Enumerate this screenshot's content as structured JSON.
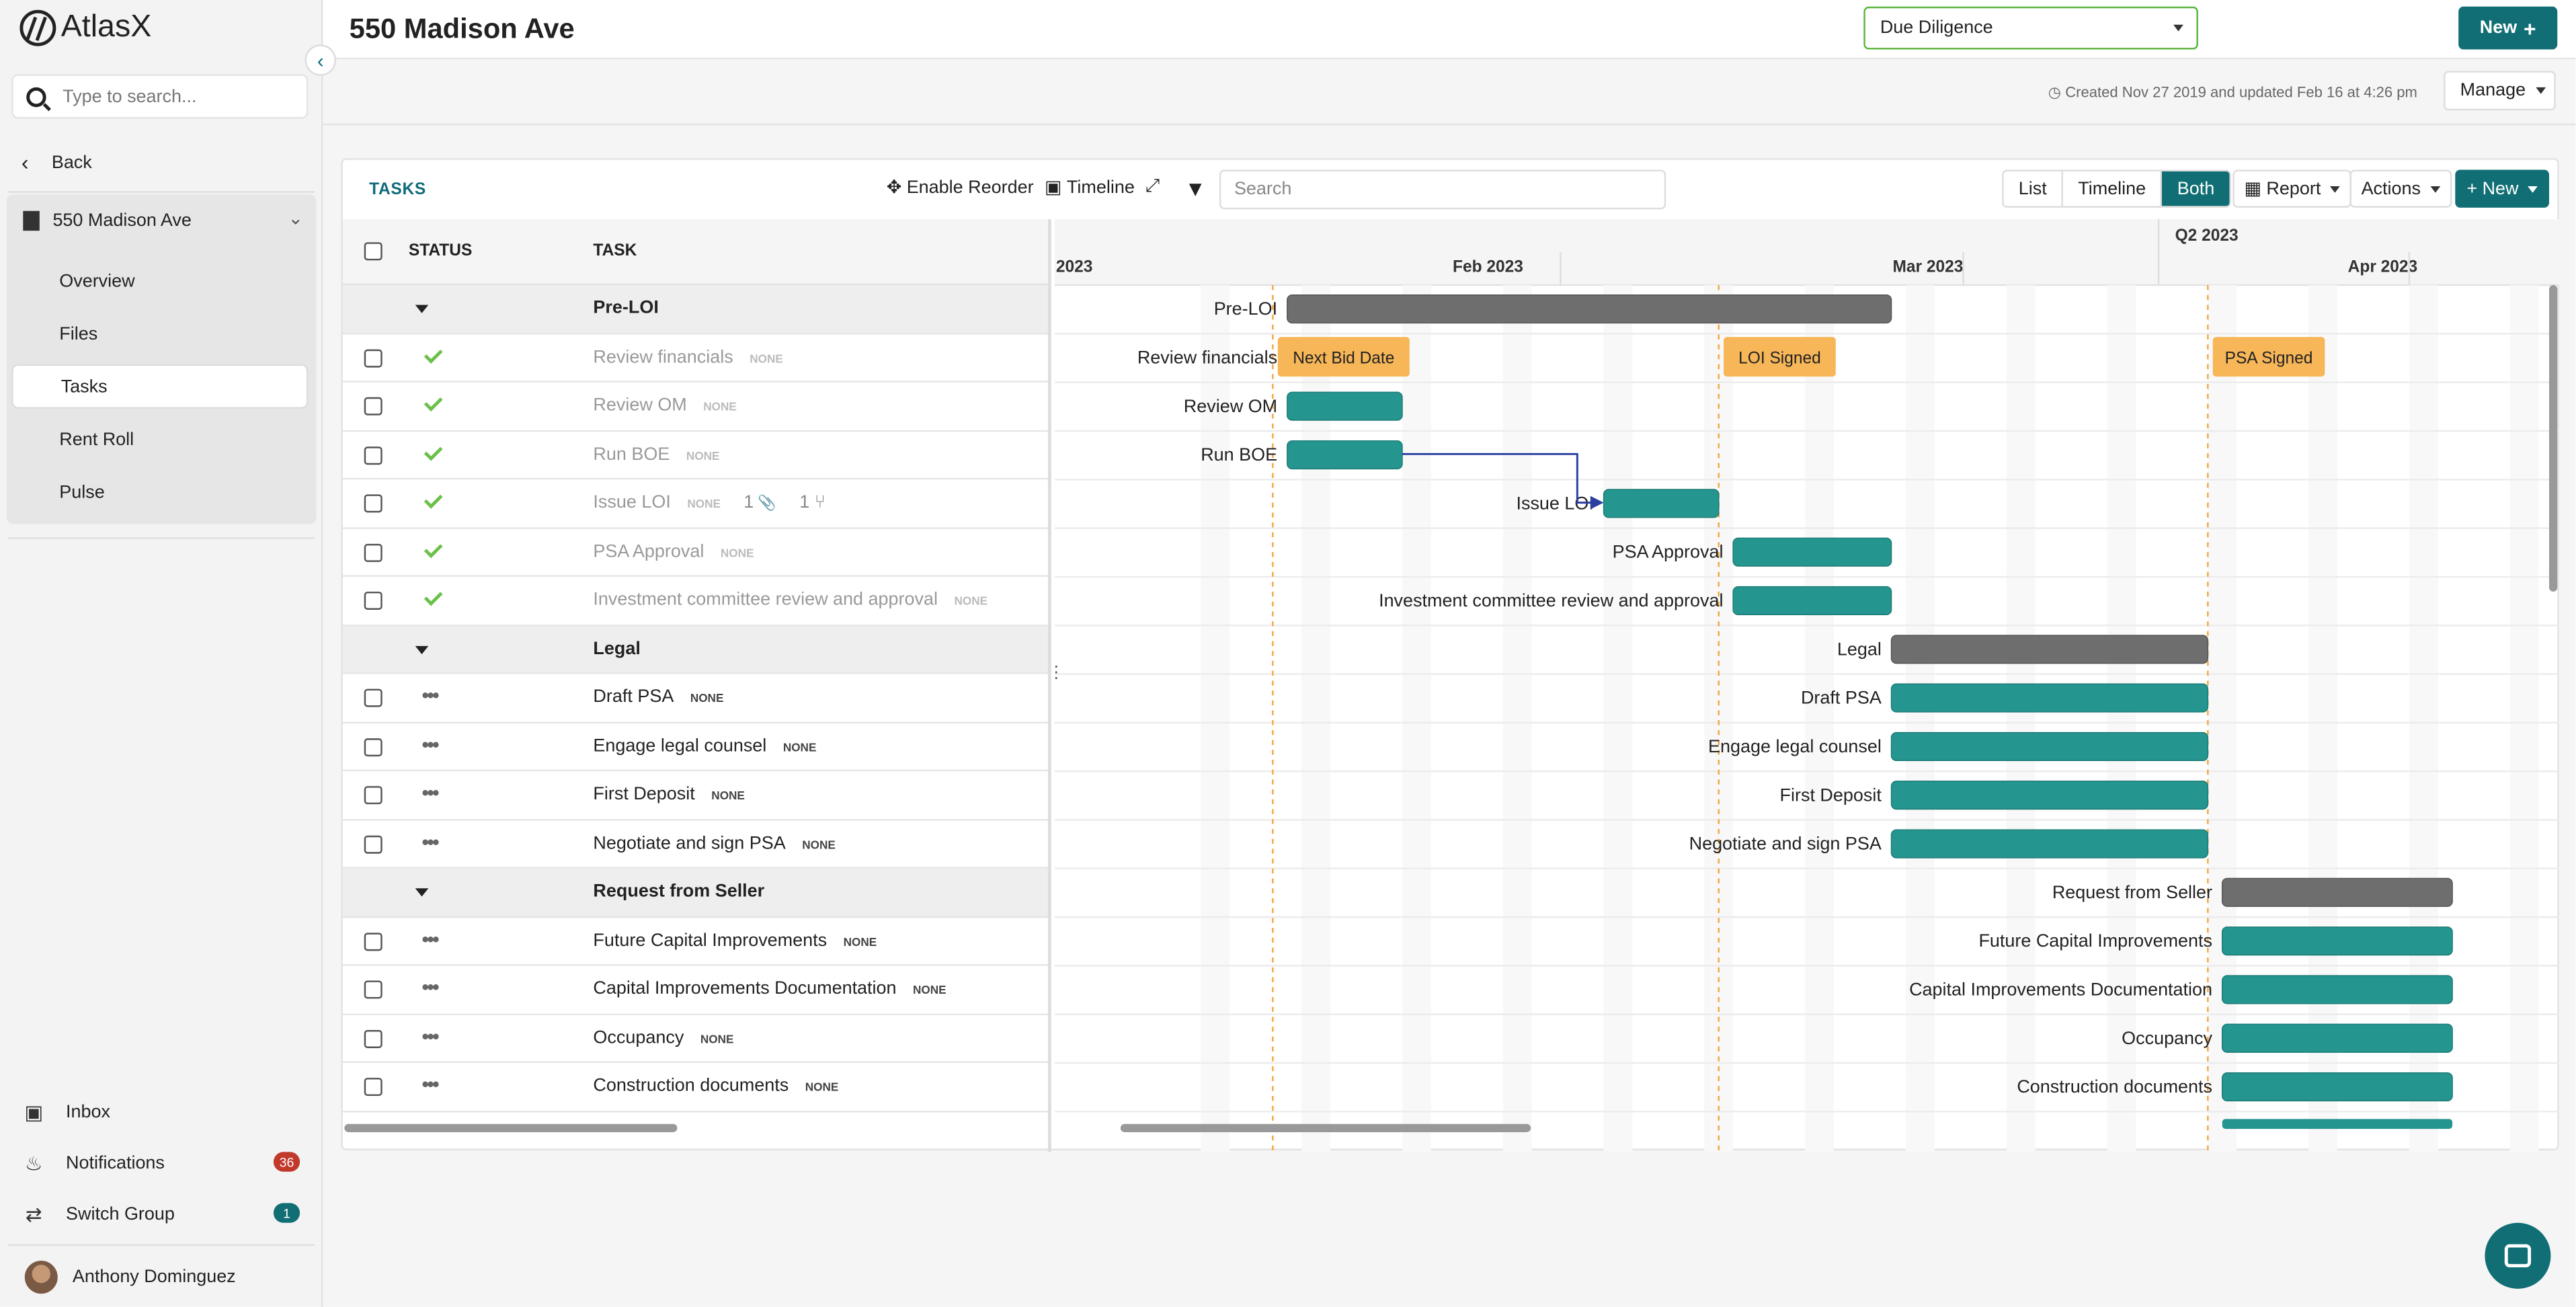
{
  "app": {
    "name": "AtlasX"
  },
  "sidebar": {
    "search_placeholder": "Type to search...",
    "back_label": "Back",
    "property": "550 Madison Ave",
    "items": [
      {
        "label": "Overview"
      },
      {
        "label": "Files"
      },
      {
        "label": "Tasks",
        "active": true
      },
      {
        "label": "Rent Roll"
      },
      {
        "label": "Pulse"
      }
    ],
    "bottom": {
      "inbox": "Inbox",
      "notifications": "Notifications",
      "notifications_count": "36",
      "switch_group": "Switch Group",
      "switch_group_count": "1",
      "user": "Anthony Dominguez"
    }
  },
  "header": {
    "title": "550 Madison Ave",
    "stage": "Due Diligence",
    "new_label": "New",
    "created_text": "Created Nov 27 2019 and updated Feb 16 at 4:26 pm",
    "manage_label": "Manage"
  },
  "toolbar": {
    "title": "TASKS",
    "enable_reorder": "Enable Reorder",
    "timeline": "Timeline",
    "search_placeholder": "Search",
    "views": [
      "List",
      "Timeline",
      "Both"
    ],
    "active_view": "Both",
    "report": "Report",
    "actions": "Actions",
    "new": "New"
  },
  "grid": {
    "columns": {
      "status": "STATUS",
      "task": "TASK"
    },
    "rows": [
      {
        "type": "group",
        "name": "Pre-LOI"
      },
      {
        "type": "task",
        "name": "Review financials",
        "tag": "NONE",
        "done": true
      },
      {
        "type": "task",
        "name": "Review OM",
        "tag": "NONE",
        "done": true
      },
      {
        "type": "task",
        "name": "Run BOE",
        "tag": "NONE",
        "done": true
      },
      {
        "type": "task",
        "name": "Issue LOI",
        "tag": "NONE",
        "done": true,
        "attachments": "1",
        "subtasks": "1"
      },
      {
        "type": "task",
        "name": "PSA Approval",
        "tag": "NONE",
        "done": true
      },
      {
        "type": "task",
        "name": "Investment committee review and approval",
        "tag": "NONE",
        "done": true
      },
      {
        "type": "group",
        "name": "Legal"
      },
      {
        "type": "task",
        "name": "Draft PSA",
        "tag": "NONE",
        "done": false
      },
      {
        "type": "task",
        "name": "Engage legal counsel",
        "tag": "NONE",
        "done": false
      },
      {
        "type": "task",
        "name": "First Deposit",
        "tag": "NONE",
        "done": false
      },
      {
        "type": "task",
        "name": "Negotiate and sign PSA",
        "tag": "NONE",
        "done": false
      },
      {
        "type": "group",
        "name": "Request from Seller"
      },
      {
        "type": "task",
        "name": "Future Capital Improvements",
        "tag": "NONE",
        "done": false
      },
      {
        "type": "task",
        "name": "Capital Improvements Documentation",
        "tag": "NONE",
        "done": false
      },
      {
        "type": "task",
        "name": "Occupancy",
        "tag": "NONE",
        "done": false
      },
      {
        "type": "task",
        "name": "Construction documents",
        "tag": "NONE",
        "done": false
      }
    ]
  },
  "timeline": {
    "quarter": "Q2 2023",
    "months": [
      "2023",
      "Feb 2023",
      "Mar 2023",
      "Apr 2023"
    ],
    "milestones": [
      "Next Bid Date",
      "LOI Signed",
      "PSA Signed"
    ],
    "bars": [
      {
        "label": "Pre-LOI",
        "group": true,
        "start": "2023-01-13",
        "end": "2023-02-24"
      },
      {
        "label": "Review financials",
        "group": false,
        "start": "2023-01-13",
        "end": "2023-01-21"
      },
      {
        "label": "Review OM",
        "group": false,
        "start": "2023-01-13",
        "end": "2023-01-21"
      },
      {
        "label": "Run BOE",
        "group": false,
        "start": "2023-01-13",
        "end": "2023-01-21"
      },
      {
        "label": "Issue LOI",
        "group": false,
        "start": "2023-02-04",
        "end": "2023-02-12"
      },
      {
        "label": "PSA Approval",
        "group": false,
        "start": "2023-02-13",
        "end": "2023-02-24"
      },
      {
        "label": "Investment committee review and approval",
        "group": false,
        "start": "2023-02-13",
        "end": "2023-02-24"
      },
      {
        "label": "Legal",
        "group": true,
        "start": "2023-02-24",
        "end": "2023-03-18"
      },
      {
        "label": "Draft PSA",
        "group": false,
        "start": "2023-02-24",
        "end": "2023-03-18"
      },
      {
        "label": "Engage legal counsel",
        "group": false,
        "start": "2023-02-24",
        "end": "2023-03-18"
      },
      {
        "label": "First Deposit",
        "group": false,
        "start": "2023-02-24",
        "end": "2023-03-18"
      },
      {
        "label": "Negotiate and sign PSA",
        "group": false,
        "start": "2023-02-24",
        "end": "2023-03-18"
      },
      {
        "label": "Request from Seller",
        "group": true,
        "start": "2023-03-19",
        "end": "2023-04-04"
      },
      {
        "label": "Future Capital Improvements",
        "group": false,
        "start": "2023-03-19",
        "end": "2023-04-04"
      },
      {
        "label": "Capital Improvements Documentation",
        "group": false,
        "start": "2023-03-19",
        "end": "2023-04-04"
      },
      {
        "label": "Occupancy",
        "group": false,
        "start": "2023-03-19",
        "end": "2023-04-04"
      },
      {
        "label": "Construction documents",
        "group": false,
        "start": "2023-03-19",
        "end": "2023-04-04"
      }
    ]
  },
  "colors": {
    "accent": "#106e74",
    "bar_task": "#25958f",
    "bar_group": "#6e6e6e",
    "milestone": "#f7b657",
    "check": "#6cc04a"
  }
}
